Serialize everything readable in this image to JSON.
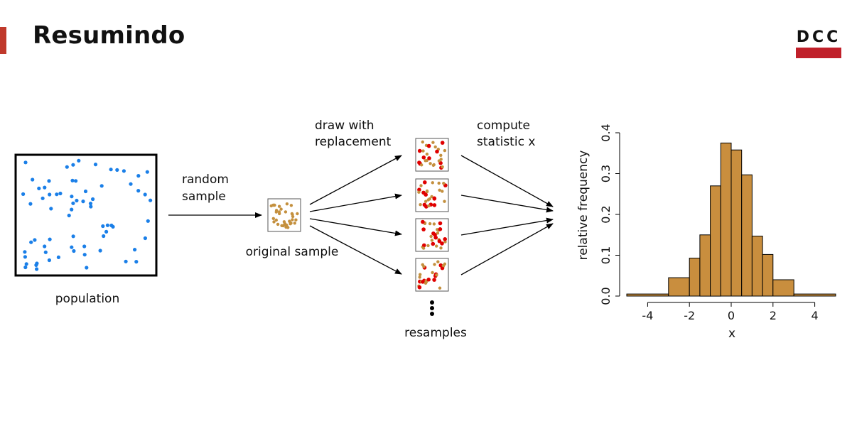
{
  "header": {
    "title": "Resumindo",
    "logo_text": "DCC"
  },
  "diagram": {
    "population_label": "population",
    "random_sample_label": [
      "random",
      "sample"
    ],
    "original_sample_label": "original sample",
    "draw_label": [
      "draw with",
      "replacement"
    ],
    "compute_label": [
      "compute",
      "statistic x"
    ],
    "resamples_label": "resamples",
    "colors": {
      "population": "#1a7fe8",
      "sample": "#c4903e",
      "resample_red": "#e00000"
    }
  },
  "chart_data": {
    "type": "histogram",
    "xlabel": "x",
    "ylabel": "relative frequency",
    "xlim": [
      -5,
      5
    ],
    "ylim": [
      0,
      0.4
    ],
    "xticks": [
      -4,
      -2,
      0,
      2,
      4
    ],
    "xtick_labels": [
      "-4",
      "-2",
      "0",
      "2",
      "4"
    ],
    "yticks": [
      0,
      0.1,
      0.2,
      0.3,
      0.4
    ],
    "ytick_labels": [
      "0.0",
      "0.1",
      "0.2",
      "0.3",
      "0.4"
    ],
    "bins": [
      {
        "x0": -5,
        "x1": -3,
        "y": 0.005
      },
      {
        "x0": -3,
        "x1": -2,
        "y": 0.045
      },
      {
        "x0": -2,
        "x1": -1.5,
        "y": 0.093
      },
      {
        "x0": -1.5,
        "x1": -1,
        "y": 0.15
      },
      {
        "x0": -1,
        "x1": -0.5,
        "y": 0.27
      },
      {
        "x0": -0.5,
        "x1": 0,
        "y": 0.375
      },
      {
        "x0": 0,
        "x1": 0.5,
        "y": 0.358
      },
      {
        "x0": 0.5,
        "x1": 1,
        "y": 0.297
      },
      {
        "x0": 1,
        "x1": 1.5,
        "y": 0.147
      },
      {
        "x0": 1.5,
        "x1": 2,
        "y": 0.102
      },
      {
        "x0": 2,
        "x1": 3,
        "y": 0.04
      },
      {
        "x0": 3,
        "x1": 5,
        "y": 0.005
      }
    ],
    "bar_color": "#c98e3e"
  }
}
